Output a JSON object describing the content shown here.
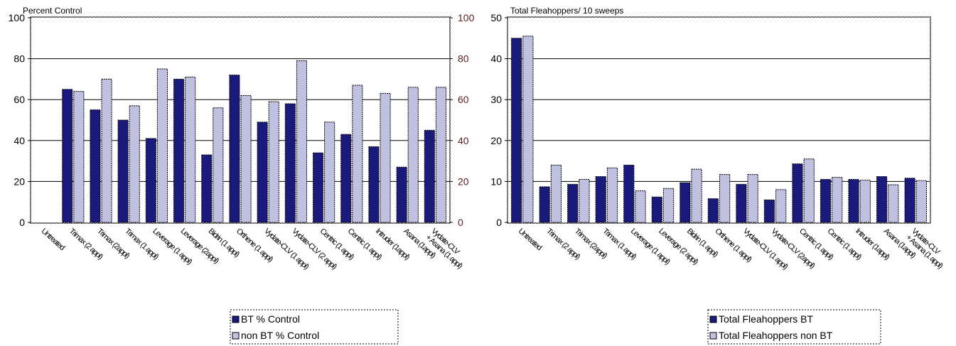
{
  "chart_data": [
    {
      "type": "bar",
      "title": "Percent Control",
      "ylim": [
        0,
        100
      ],
      "yticks": [
        0,
        20,
        40,
        60,
        80,
        100
      ],
      "secondary_axis": true,
      "secondary_ylim": [
        0,
        100
      ],
      "categories": [
        "Untreated",
        "Trimax (2 appl)",
        "Trimax (2appl)",
        "Trimax (1 appl)",
        "Leverage (1 appl)",
        "Leverage (2appl)",
        "Bidrin (1 appl)",
        "Orthene (1 appl)",
        "Vydate-CLV (1 appl)",
        "Vydate-CLV (2 appl)",
        "Centric (1 appl)",
        "Centric (1 appl)",
        "Intruder (1appl)",
        "Asana (1appl)",
        "Vydate-CLV + Asana (1 appl)"
      ],
      "series": [
        {
          "name": "BT % Control",
          "color": "#1a1a7c",
          "values": [
            null,
            65,
            55,
            50,
            41,
            70,
            33,
            72,
            49,
            58,
            34,
            43,
            37,
            27,
            45
          ]
        },
        {
          "name": "non BT % Control",
          "color": "#c0c0e0",
          "values": [
            null,
            64,
            70,
            57,
            75,
            71,
            56,
            62,
            59,
            79,
            49,
            67,
            63,
            66,
            66
          ]
        }
      ],
      "grid": true,
      "legend": "bottom"
    },
    {
      "type": "bar",
      "title": "Total Fleahoppers/ 10 sweeps",
      "ylim": [
        0,
        50
      ],
      "yticks": [
        0,
        10,
        20,
        30,
        40,
        50
      ],
      "categories": [
        "Untreated",
        "Trimax (2 appl)",
        "Trimax (2appl)",
        "Trimax (1 appl)",
        "Leverage (1 appl)",
        "Leverage (2 appl)",
        "Bidrin (1 appl)",
        "Orthene (1 appl)",
        "Vydate-CLV (1 appl)",
        "Vydate-CLV (2appl)",
        "Centric (1 appl)",
        "Centric (1 appl)",
        "Intruder (1appl)",
        "Asana (1appl)",
        "Vydate-CLV + Asana (1 appl)"
      ],
      "series": [
        {
          "name": "Total Fleahoppers BT",
          "color": "#1a1a7c",
          "values": [
            45,
            8.7,
            9.3,
            11.2,
            14,
            6.2,
            9.7,
            5.8,
            9.3,
            5.5,
            14.3,
            10.5,
            10.5,
            11.2,
            10.8
          ]
        },
        {
          "name": "Total Fleahoppers non BT",
          "color": "#c0c0e0",
          "values": [
            45.5,
            14,
            10.5,
            13.3,
            7.7,
            8.3,
            13,
            11.7,
            11.7,
            8,
            15.5,
            11,
            10.3,
            9.2,
            10.2
          ]
        }
      ],
      "grid": true,
      "legend": "bottom"
    }
  ]
}
